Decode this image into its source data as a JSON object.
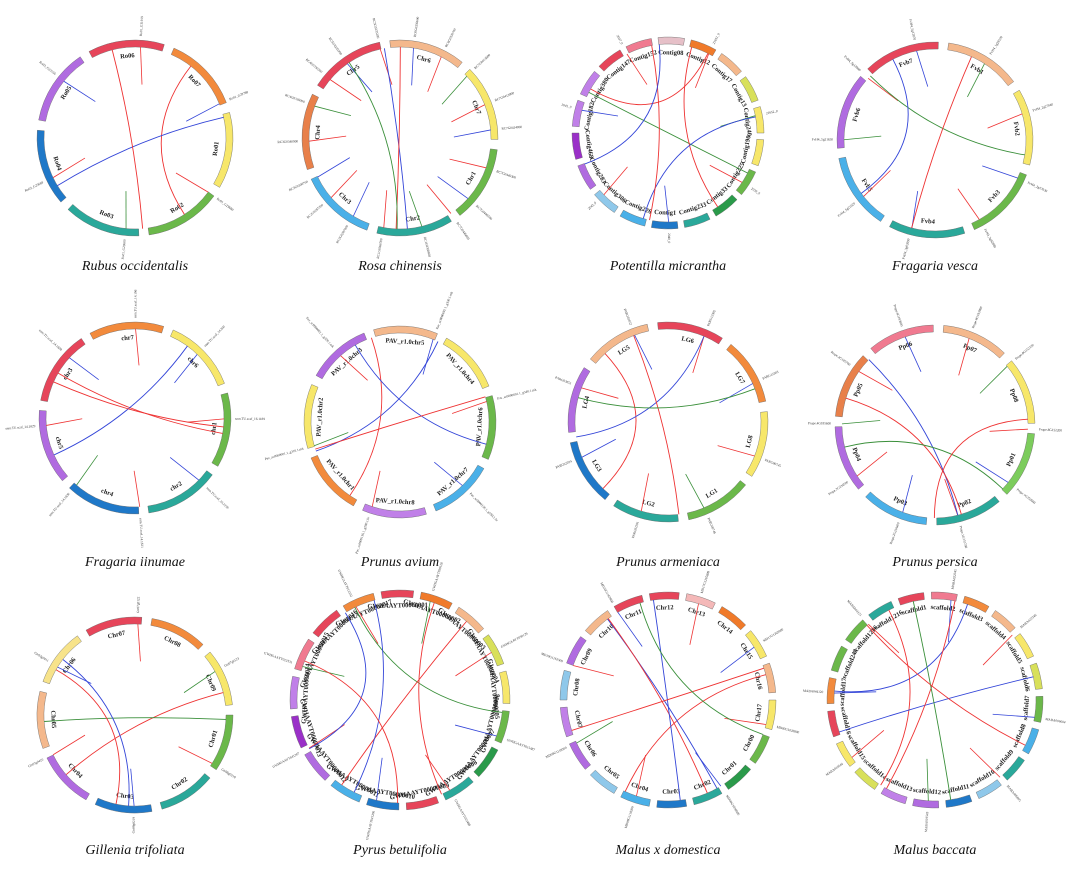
{
  "figure": {
    "panels": [
      {
        "species": "Rubus occidentalis",
        "chromosomes": [
          {
            "name": "Ro06",
            "color": "#e6455a"
          },
          {
            "name": "Ro07",
            "color": "#f28a3c"
          },
          {
            "name": "Ro01",
            "color": "#f7e76a"
          },
          {
            "name": "Ro02",
            "color": "#6bb84a"
          },
          {
            "name": "Ro03",
            "color": "#2aa89a"
          },
          {
            "name": "Ro04",
            "color": "#1f78c8"
          },
          {
            "name": "Ro05",
            "color": "#b06be0"
          }
        ],
        "genes": [
          "Ro01_G31919",
          "Ro01_G29788",
          "Ro01_G29690",
          "Ro01_G29680",
          "Ro03_G25669",
          "Ro03_G23166"
        ],
        "links": []
      },
      {
        "species": "Rosa chinensis",
        "chromosomes": [
          {
            "name": "Chr6",
            "color": "#f4b88c"
          },
          {
            "name": "Chr7",
            "color": "#f7e76a"
          },
          {
            "name": "Chr1",
            "color": "#6bb84a"
          },
          {
            "name": "Chr2",
            "color": "#2aa89a"
          },
          {
            "name": "Chr3",
            "color": "#4ab0e8"
          },
          {
            "name": "Chr4",
            "color": "#e8804a"
          },
          {
            "name": "Chr5",
            "color": "#e6455a"
          }
        ],
        "genes": [
          "RC6G0330600",
          "RC6G0330700",
          "RC7G0413600",
          "RC7G0413900",
          "RC7G0414000",
          "RC7G0446300",
          "RC7G0446500",
          "RC7G0446600",
          "RC1G0368600",
          "RC1G0368700",
          "RC2G0287000",
          "RC2G0287200",
          "RC3G0340700",
          "RC3G0340900",
          "RC4G0330000",
          "RC4G0330200",
          "RC5G0235300",
          "RC5G0235200"
        ],
        "links": []
      },
      {
        "species": "Potentilla micrantha",
        "chromosomes": [
          {
            "name": "Contig08",
            "color": "#e6c0c8"
          },
          {
            "name": "Contig12",
            "color": "#f07a2a"
          },
          {
            "name": "Contig17",
            "color": "#f4b88c"
          },
          {
            "name": "Contig13",
            "color": "#d8e05a"
          },
          {
            "name": "Contig240",
            "color": "#f7e76a"
          },
          {
            "name": "Contig190",
            "color": "#f7e76a"
          },
          {
            "name": "Contig225",
            "color": "#6bb84a"
          },
          {
            "name": "Contig33",
            "color": "#2a9a4a"
          },
          {
            "name": "Contig233",
            "color": "#2aa89a"
          },
          {
            "name": "Contig1",
            "color": "#1f78c8"
          },
          {
            "name": "Contig226",
            "color": "#4ab0e8"
          },
          {
            "name": "Contig386",
            "color": "#8fc8ea"
          },
          {
            "name": "Contig283",
            "color": "#b06be0"
          },
          {
            "name": "Contig468",
            "color": "#9a30c8"
          },
          {
            "name": "Contig182",
            "color": "#c080e8"
          },
          {
            "name": "Contig380",
            "color": "#c080e8"
          },
          {
            "name": "Contig147",
            "color": "#e6455a"
          },
          {
            "name": "Contig152",
            "color": "#f07a90"
          }
        ],
        "genes": [
          "21651_0",
          "21652_0",
          "2039_0",
          "2040_0",
          "2043_0",
          "2045_0",
          "2047_0"
        ],
        "links": []
      },
      {
        "species": "Fragaria vesca",
        "chromosomes": [
          {
            "name": "Fvb1",
            "color": "#f4b88c"
          },
          {
            "name": "Fvb2",
            "color": "#f7e76a"
          },
          {
            "name": "Fvb3",
            "color": "#6bb84a"
          },
          {
            "name": "Fvb4",
            "color": "#2aa89a"
          },
          {
            "name": "Fvb5",
            "color": "#4ab0e8"
          },
          {
            "name": "Fvb6",
            "color": "#b06be0"
          },
          {
            "name": "Fvb7",
            "color": "#e6455a"
          }
        ],
        "genes": [
          "FvH4_1g28100",
          "FvH4_2g27040",
          "FvH4_2g27030",
          "FvH4_3g02680",
          "FvH4_3g02690",
          "FvH4_5g21620",
          "FvH4_5g21630",
          "FvH4_5g12860",
          "FvH4_5g12870"
        ],
        "links": []
      },
      {
        "species": "Fragaria iinumae",
        "chromosomes": [
          {
            "name": "chr7",
            "color": "#f28a3c"
          },
          {
            "name": "chr6",
            "color": "#f7e76a"
          },
          {
            "name": "chr1",
            "color": "#6bb84a"
          },
          {
            "name": "chr2",
            "color": "#2aa89a"
          },
          {
            "name": "chr4",
            "color": "#1f78c8"
          },
          {
            "name": "chr5",
            "color": "#b06be0"
          },
          {
            "name": "chr3",
            "color": "#e6455a"
          }
        ],
        "genes": [
          "snm.TU.scaf_14.196",
          "snm.TU.scaf_14.200",
          "snm.TU.scaf_16.1189",
          "snm.TU.scaf_16.1190",
          "snm.TU.scaf_14.1831",
          "snm.TU.scaf_14.1830",
          "snm.TU.scaf_14.1829",
          "snm.TU.scaf_14.1828"
        ],
        "links": []
      },
      {
        "species": "Prunus avium",
        "chromosomes": [
          {
            "name": "PAV_r1.0chr5",
            "color": "#f4b88c"
          },
          {
            "name": "PAV_r1.0chr4",
            "color": "#f7e76a"
          },
          {
            "name": "PAV_r1.0chr6",
            "color": "#6bb84a"
          },
          {
            "name": "PAV_r1.0chr7",
            "color": "#4ab0e8"
          },
          {
            "name": "PAV_r1.0chr8",
            "color": "#c080e8"
          },
          {
            "name": "PAV_r1.0chr1",
            "color": "#f28a3c"
          },
          {
            "name": "PAV_r1.0chr2",
            "color": "#f7e76a"
          },
          {
            "name": "PAV_r1.0chr3",
            "color": "#b06be0"
          }
        ],
        "genes": [
          "Pav_sc0000691.1_g330.1.mk",
          "Pav_sc0000691.1_g340.1.mk",
          "Pav_sc0000136.1_g190.1.br",
          "Pav_sc0000136.1_g200.1.br",
          "Pav_sc0000001.1_g310.1.mk",
          "Pav_sc0000001.1_g320.1.mk"
        ],
        "links": []
      },
      {
        "species": "Prunus armeniaca",
        "chromosomes": [
          {
            "name": "LG6",
            "color": "#e6455a"
          },
          {
            "name": "LG7",
            "color": "#f28a3c"
          },
          {
            "name": "LG8",
            "color": "#f7e76a"
          },
          {
            "name": "LG1",
            "color": "#6bb84a"
          },
          {
            "name": "LG2",
            "color": "#2aa89a"
          },
          {
            "name": "LG3",
            "color": "#1f78c8"
          },
          {
            "name": "LG4",
            "color": "#b06be0"
          },
          {
            "name": "LG5",
            "color": "#f4b88c"
          }
        ],
        "genes": [
          "PARG12302",
          "PARG12303",
          "PARG00745",
          "PARG00746",
          "PARG02201",
          "PARG02204",
          "PARG03651",
          "PARG03652"
        ],
        "links": []
      },
      {
        "species": "Prunus persica",
        "chromosomes": [
          {
            "name": "Pp06",
            "color": "#f07a90"
          },
          {
            "name": "Pp07",
            "color": "#f4b88c"
          },
          {
            "name": "Pp08",
            "color": "#f7e76a"
          },
          {
            "name": "Pp01",
            "color": "#7ccc5c"
          },
          {
            "name": "Pp02",
            "color": "#2aa89a"
          },
          {
            "name": "Pp03",
            "color": "#4ab0e8"
          },
          {
            "name": "Pp04",
            "color": "#b06be0"
          },
          {
            "name": "Pp05",
            "color": "#e8804a"
          }
        ],
        "genes": [
          "Prupe.6G193800",
          "Prupe.6G193900",
          "Prupe.8G152100",
          "Prupe.8G152200",
          "Prupe.1G353600",
          "Prupe.1G353700",
          "Prupe.2G234400",
          "Prupe.2G234500",
          "Prupe.4G185600",
          "Prupe.4G185700"
        ],
        "links": []
      },
      {
        "species": "Gillenia trifoliata",
        "chromosomes": [
          {
            "name": "Chr07",
            "color": "#e6455a"
          },
          {
            "name": "Chr08",
            "color": "#f28a3c"
          },
          {
            "name": "Chr09",
            "color": "#f7e76a"
          },
          {
            "name": "Chr01",
            "color": "#6bb84a"
          },
          {
            "name": "Chr02",
            "color": "#2aa89a"
          },
          {
            "name": "Chr03",
            "color": "#1f78c8"
          },
          {
            "name": "Chr04",
            "color": "#b06be0"
          },
          {
            "name": "Chr05",
            "color": "#f4b88c"
          },
          {
            "name": "Chr06",
            "color": "#f7e38a"
          }
        ],
        "genes": [
          "Gtr07g0122",
          "Gtr07g0123",
          "Gtr08g0218",
          "Gtr08g0219",
          "Gtr03g0410",
          "Gtr03g0411"
        ],
        "links": []
      },
      {
        "species": "Pyrus betulifolia",
        "chromosomes": [
          {
            "name": "GWHAAYT00000001",
            "color": "#e6455a"
          },
          {
            "name": "GWHAAYT00000002",
            "color": "#f07a2a"
          },
          {
            "name": "GWHAAYT00000003",
            "color": "#f4b88c"
          },
          {
            "name": "GWHAAYT00000004",
            "color": "#d8e05a"
          },
          {
            "name": "GWHAAYT00000005",
            "color": "#f7e76a"
          },
          {
            "name": "GWHAAYT00000006",
            "color": "#6bb84a"
          },
          {
            "name": "GWHAAYT00000007",
            "color": "#2a9a4a"
          },
          {
            "name": "GWHAAYT00000008",
            "color": "#2aa89a"
          },
          {
            "name": "GWHAAYT00000009",
            "color": "#e6455a"
          },
          {
            "name": "GWHAAYT00000010",
            "color": "#1f78c8"
          },
          {
            "name": "GWHAAYT00000011",
            "color": "#4ab0e8"
          },
          {
            "name": "GWHAAYT00000012",
            "color": "#b06be0"
          },
          {
            "name": "GWHAAYT00000013",
            "color": "#9a30c8"
          },
          {
            "name": "GWHAAYT00000014",
            "color": "#c080e8"
          },
          {
            "name": "GWHAAYT00000015",
            "color": "#f07a90"
          },
          {
            "name": "GWHAAYT00000016",
            "color": "#e6455a"
          },
          {
            "name": "GWHAAYT00000017",
            "color": "#f28a3c"
          }
        ],
        "genes": [
          "GWHGAAYT030128",
          "GWHGAAYT030129",
          "GWHGAAYT015487",
          "GWHGAAYT015488",
          "GWHGAAYT041206",
          "GWHGAAYT041207",
          "GWHGAAYT012331",
          "GWHGAAYT012332"
        ],
        "links": []
      },
      {
        "species": "Malus x domestica",
        "chromosomes": [
          {
            "name": "Chr12",
            "color": "#e6455a"
          },
          {
            "name": "Chr13",
            "color": "#f4b8b8"
          },
          {
            "name": "Chr14",
            "color": "#f07a2a"
          },
          {
            "name": "Chr15",
            "color": "#f7e76a"
          },
          {
            "name": "Chr16",
            "color": "#f4b88c"
          },
          {
            "name": "Chr17",
            "color": "#f7e76a"
          },
          {
            "name": "Chr00",
            "color": "#6bb84a"
          },
          {
            "name": "Chr01",
            "color": "#2a9a4a"
          },
          {
            "name": "Chr02",
            "color": "#2aa89a"
          },
          {
            "name": "Chr03",
            "color": "#1f78c8"
          },
          {
            "name": "Chr04",
            "color": "#4ab0e8"
          },
          {
            "name": "Chr05",
            "color": "#8fc8ea"
          },
          {
            "name": "Chr06",
            "color": "#b06be0"
          },
          {
            "name": "Chr07",
            "color": "#c080e8"
          },
          {
            "name": "Chr08",
            "color": "#8fc8ea"
          },
          {
            "name": "Chr09",
            "color": "#b06be0"
          },
          {
            "name": "Chr10",
            "color": "#f4b88c"
          },
          {
            "name": "Chr11",
            "color": "#e6455a"
          }
        ],
        "genes": [
          "MD17G1265800",
          "MD17G1265900",
          "MD00G1026800",
          "MD00G1026900",
          "MD09G1118200",
          "MD09G1118300",
          "MD10G1162500",
          "MD10G1162600"
        ],
        "links": []
      },
      {
        "species": "Malus baccata",
        "chromosomes": [
          {
            "name": "scaffold1",
            "color": "#e6455a"
          },
          {
            "name": "scaffold2",
            "color": "#f07a90"
          },
          {
            "name": "scaffold3",
            "color": "#f28a3c"
          },
          {
            "name": "scaffold4",
            "color": "#f4b88c"
          },
          {
            "name": "scaffold5",
            "color": "#f7e76a"
          },
          {
            "name": "scaffold6",
            "color": "#d8e05a"
          },
          {
            "name": "scaffold7",
            "color": "#6bb84a"
          },
          {
            "name": "scaffold8",
            "color": "#4ab0e8"
          },
          {
            "name": "scaffold9",
            "color": "#2aa89a"
          },
          {
            "name": "scaffold10",
            "color": "#8fc8ea"
          },
          {
            "name": "scaffold11",
            "color": "#1f78c8"
          },
          {
            "name": "scaffold12",
            "color": "#b06be0"
          },
          {
            "name": "scaffold13",
            "color": "#c080e8"
          },
          {
            "name": "scaffold14",
            "color": "#d8e05a"
          },
          {
            "name": "scaffold15",
            "color": "#f7e76a"
          },
          {
            "name": "scaffold16",
            "color": "#e6455a"
          },
          {
            "name": "scaffold17",
            "color": "#f28a3c"
          },
          {
            "name": "scaffold243",
            "color": "#6bb84a"
          },
          {
            "name": "scaffold1216",
            "color": "#6bb84a"
          },
          {
            "name": "scaffold1216",
            "color": "#2aa89a"
          }
        ],
        "genes": [
          "MABA022345",
          "MABA022346",
          "MABA006604",
          "MABA006605",
          "MABA019543",
          "MABA019544",
          "MABA044120",
          "MABA044121"
        ],
        "links": []
      }
    ]
  }
}
